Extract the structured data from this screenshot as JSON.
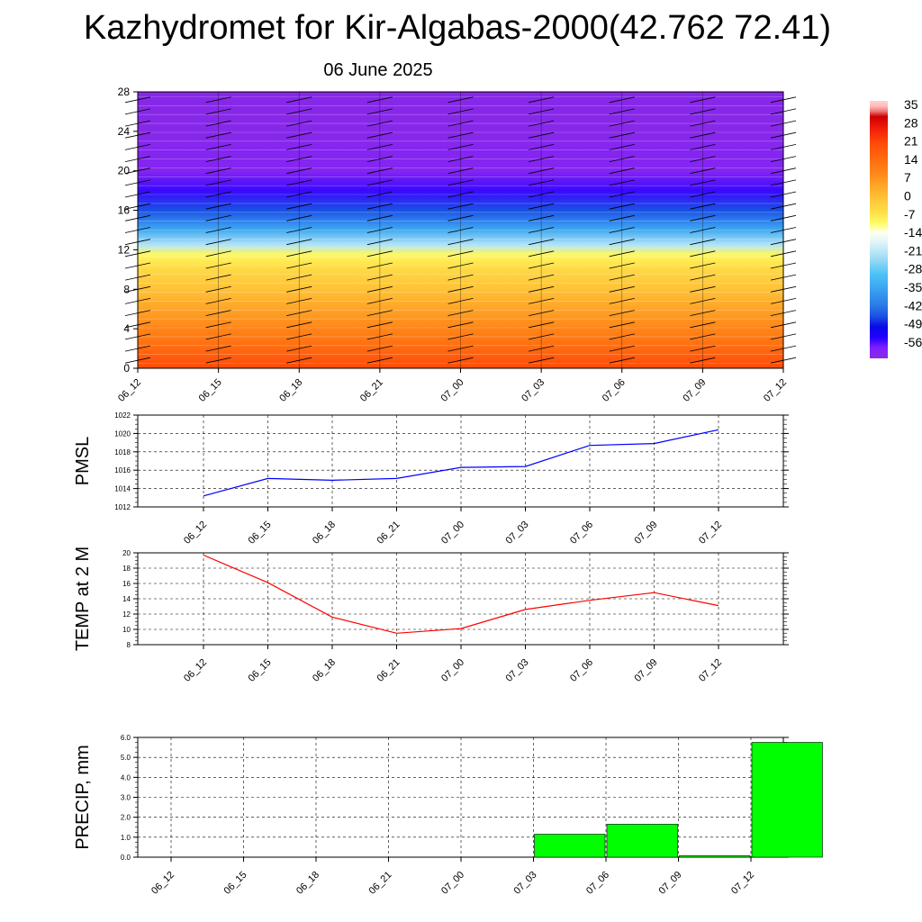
{
  "header": {
    "title": "Kazhydromet for Kir-Algabas-2000(42.762 72.41)",
    "date": "06 June 2025"
  },
  "colors": {
    "pmsl_line": "#0000ff",
    "temp_line": "#ff0000",
    "precip_bar": "#00ff00",
    "grid": "#000000"
  },
  "chart_data": [
    {
      "type": "heatmap",
      "title": "",
      "x_ticks": [
        "06_12",
        "06_15",
        "06_18",
        "06_21",
        "07_00",
        "07_03",
        "07_06",
        "07_09",
        "07_12"
      ],
      "y_ticks": [
        0,
        4,
        8,
        12,
        16,
        20,
        24,
        28
      ],
      "ylim": [
        0,
        28
      ],
      "colorbar_labels": [
        "35",
        "28",
        "21",
        "14",
        "7",
        "0",
        "-7",
        "-14",
        "-21",
        "-28",
        "-35",
        "-42",
        "-49",
        "-56"
      ],
      "colorbar_range": [
        -60,
        38
      ],
      "temperature_profile": [
        {
          "z": 0,
          "t": 22
        },
        {
          "z": 2,
          "t": 16
        },
        {
          "z": 4,
          "t": 11
        },
        {
          "z": 6,
          "t": 6
        },
        {
          "z": 8,
          "t": 1
        },
        {
          "z": 10,
          "t": -3
        },
        {
          "z": 11.5,
          "t": -8
        },
        {
          "z": 12.5,
          "t": -20
        },
        {
          "z": 14,
          "t": -32
        },
        {
          "z": 16,
          "t": -44
        },
        {
          "z": 18,
          "t": -53
        },
        {
          "z": 20,
          "t": -58
        },
        {
          "z": 22,
          "t": -58
        },
        {
          "z": 24,
          "t": -59
        },
        {
          "z": 28,
          "t": -59
        }
      ],
      "wind_barbs": "westerly barbs at each forecast time"
    },
    {
      "type": "line",
      "ylabel": "PMSL",
      "categories": [
        "06_12",
        "06_15",
        "06_18",
        "06_21",
        "07_00",
        "07_03",
        "07_06",
        "07_09",
        "07_12"
      ],
      "values": [
        1013.2,
        1015.1,
        1014.9,
        1015.1,
        1016.3,
        1016.4,
        1018.7,
        1018.9,
        1020.4
      ],
      "ylim": [
        1012,
        1022
      ],
      "y_ticks": [
        1012,
        1014,
        1016,
        1018,
        1020,
        1022
      ],
      "grid": true
    },
    {
      "type": "line",
      "ylabel": "TEMP at 2 M",
      "categories": [
        "06_12",
        "06_15",
        "06_18",
        "06_21",
        "07_00",
        "07_03",
        "07_06",
        "07_09",
        "07_12"
      ],
      "values": [
        19.7,
        16.1,
        11.6,
        9.5,
        10.1,
        12.6,
        13.8,
        14.8,
        13.1
      ],
      "ylim": [
        8,
        20
      ],
      "y_ticks": [
        8,
        10,
        12,
        14,
        16,
        18,
        20
      ],
      "grid": true
    },
    {
      "type": "bar",
      "ylabel": "PRECIP, mm",
      "categories": [
        "06_12",
        "06_15",
        "06_18",
        "06_21",
        "07_00",
        "07_03",
        "07_06",
        "07_09",
        "07_12"
      ],
      "values": [
        0,
        0,
        0,
        0,
        0,
        1.15,
        1.65,
        0.08,
        5.75
      ],
      "ylim": [
        0,
        6
      ],
      "y_ticks": [
        "0.0",
        "1.0",
        "2.0",
        "3.0",
        "4.0",
        "5.0",
        "6.0"
      ],
      "grid": true
    }
  ]
}
